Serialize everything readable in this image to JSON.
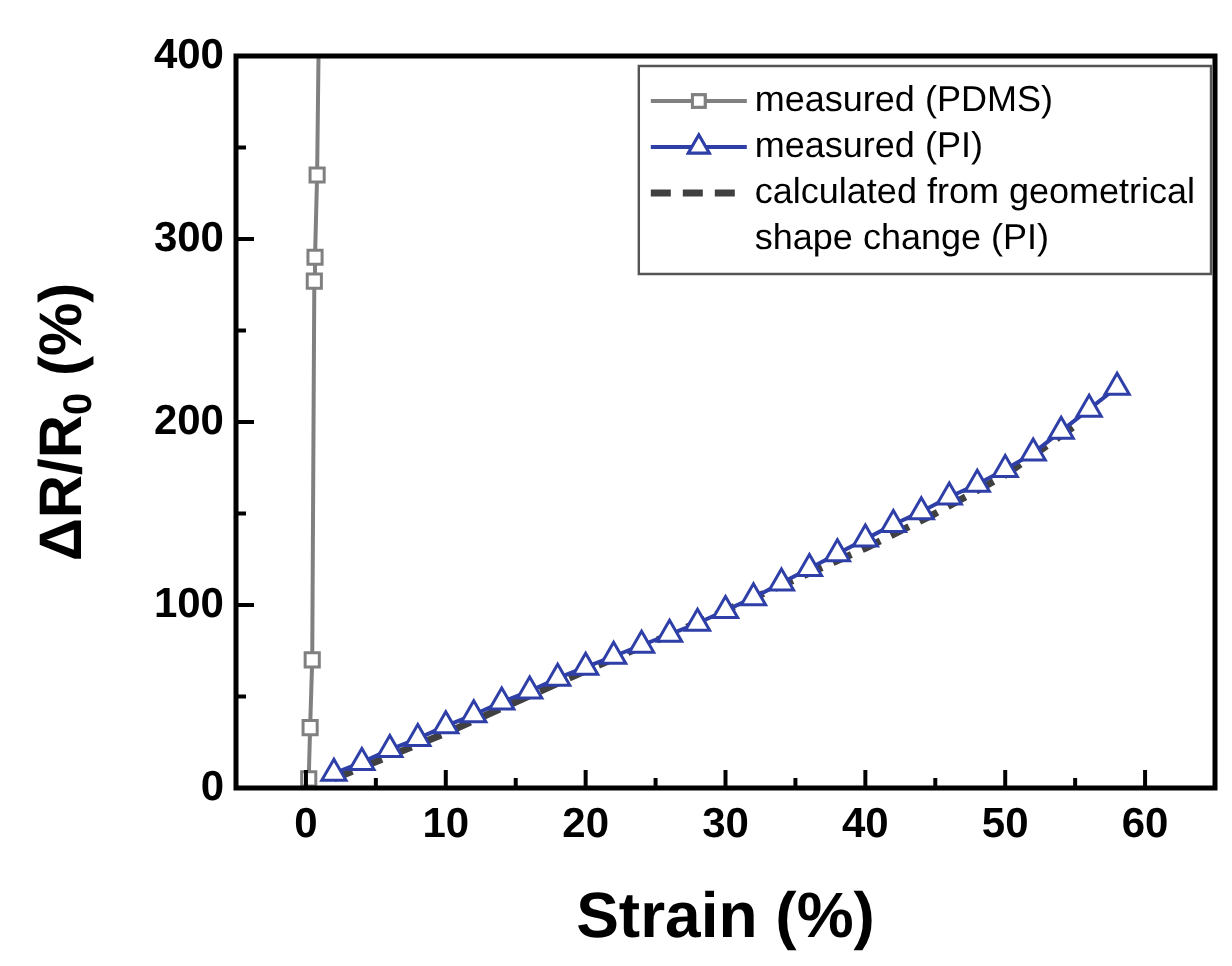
{
  "chart_data": {
    "type": "line",
    "xlabel": "Strain (%)",
    "ylabel": "ΔR/R$_{0}$ (%)",
    "xlim": [
      -5,
      65
    ],
    "ylim": [
      0,
      400
    ],
    "xticks": [
      0,
      {
        "value": 5,
        "label": null
      },
      10,
      {
        "value": 15,
        "label": null
      },
      20,
      {
        "value": 25,
        "label": null
      },
      30,
      {
        "value": 35,
        "label": null
      },
      40,
      {
        "value": 45,
        "label": null
      },
      50,
      {
        "value": 55,
        "label": null
      },
      60
    ],
    "yticks": [
      0,
      {
        "value": 50,
        "label": null
      },
      100,
      {
        "value": 150,
        "label": null
      },
      200,
      {
        "value": 250,
        "label": null
      },
      300,
      {
        "value": 350,
        "label": null
      },
      400
    ],
    "grid": false,
    "legend": "top right",
    "series": [
      {
        "name": "measured (PDMS)",
        "color": "#808080",
        "marker": "square",
        "line_style": "solid",
        "x": [
          0.2,
          0.3,
          0.45,
          0.6,
          0.65,
          0.8,
          0.9
        ],
        "values": [
          5,
          33,
          70,
          277,
          290,
          335,
          400
        ]
      },
      {
        "name": "measured (PI)",
        "color": "#2f3fa8",
        "marker": "triangle",
        "line_style": "solid",
        "x": [
          2,
          4,
          6,
          8,
          10,
          12,
          14,
          16,
          18,
          20,
          22,
          24,
          26,
          28,
          30,
          32,
          34,
          36,
          38,
          40,
          42,
          44,
          46,
          48,
          50,
          52,
          54,
          56,
          58
        ],
        "values": [
          8,
          14,
          21,
          27,
          34,
          40,
          47,
          53,
          60,
          66,
          72,
          78,
          84,
          90,
          97,
          104,
          112,
          120,
          128,
          136,
          144,
          151,
          159,
          166,
          174,
          183,
          195,
          207,
          219
        ]
      },
      {
        "name": "calculated from geometrical shape change (PI)",
        "color": "#404040",
        "marker": "none",
        "line_style": "dashed",
        "x": [
          2,
          10,
          20,
          30,
          40,
          45,
          50,
          55
        ],
        "values": [
          5,
          30,
          64,
          97,
          131,
          150,
          171,
          198
        ]
      }
    ]
  }
}
